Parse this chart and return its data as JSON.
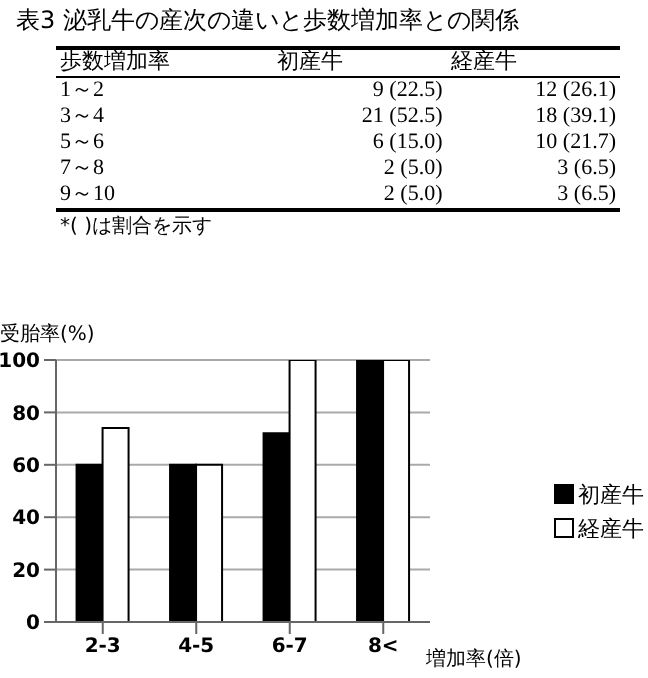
{
  "chart_data": {
    "type": "bar",
    "ylabel": "受胎率(%)",
    "xlabel": "増加率(倍)",
    "categories": [
      "2-3",
      "4-5",
      "6-7",
      "8<"
    ],
    "series": [
      {
        "name": "初産牛",
        "color": "#000000",
        "values": [
          60,
          60,
          72,
          100
        ]
      },
      {
        "name": "経産牛",
        "color": "#ffffff",
        "values": [
          74,
          60,
          100,
          100
        ]
      }
    ],
    "ylim": [
      0,
      100
    ],
    "yticks": [
      0,
      20,
      40,
      60,
      80,
      100
    ],
    "grid": "y",
    "legend": "right",
    "annotations": [
      "表3 泌乳牛の産次の違いと歩数増加率との関係",
      "歩数増加率",
      "初産牛",
      "経産牛",
      "1～2",
      "9 (22.5)",
      "12 (26.1)",
      "3～4",
      "21 (52.5)",
      "18 (39.1)",
      "5～6",
      "6 (15.0)",
      "10 (21.7)",
      "7～8",
      "2 (5.0)",
      "3 (6.5)",
      "9～10",
      "2 (5.0)",
      "3 (6.5)",
      "*( )は割合を示す"
    ]
  }
}
